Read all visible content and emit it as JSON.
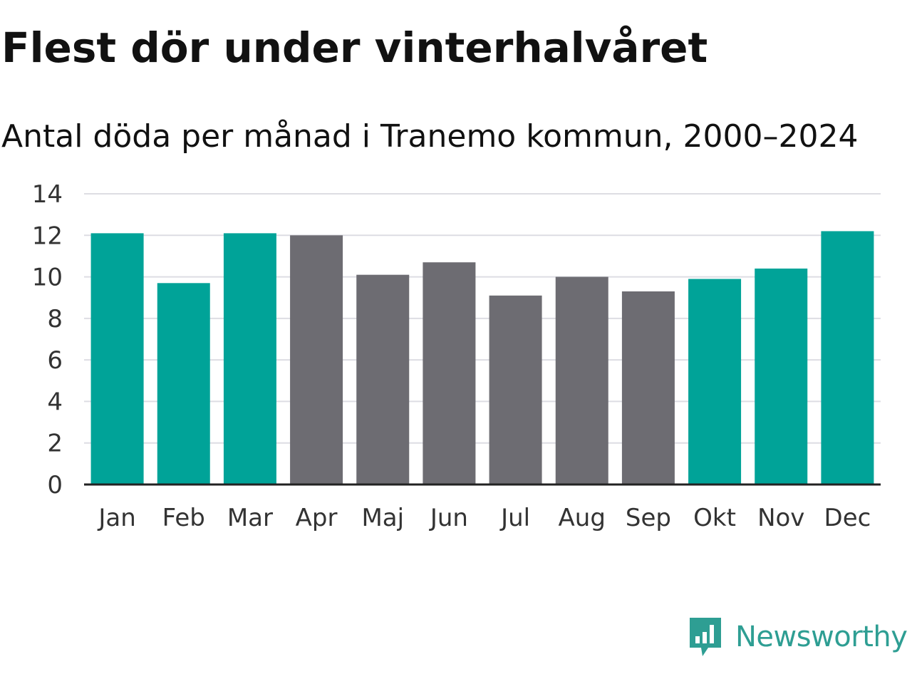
{
  "header": {
    "title": "Flest dör under vinterhalvåret",
    "subtitle": "Antal döda per månad i Tranemo kommun, 2000–2024"
  },
  "brand": {
    "name": "Newsworthy",
    "icon": "newsworthy-logo-icon",
    "color": "#2e9e93"
  },
  "colors": {
    "highlight": "#00a398",
    "base": "#6d6c72",
    "grid": "#dddde3",
    "axis": "#222222"
  },
  "chart_data": {
    "type": "bar",
    "title": "Flest dör under vinterhalvåret",
    "subtitle": "Antal döda per månad i Tranemo kommun, 2000–2024",
    "xlabel": "",
    "ylabel": "",
    "categories": [
      "Jan",
      "Feb",
      "Mar",
      "Apr",
      "Maj",
      "Jun",
      "Jul",
      "Aug",
      "Sep",
      "Okt",
      "Nov",
      "Dec"
    ],
    "values": [
      12.1,
      9.7,
      12.1,
      12.0,
      10.1,
      10.7,
      9.1,
      10.0,
      9.3,
      9.9,
      10.4,
      12.2
    ],
    "highlighted": [
      true,
      true,
      true,
      false,
      false,
      false,
      false,
      false,
      false,
      true,
      true,
      true
    ],
    "ylim": [
      0,
      14
    ],
    "yticks": [
      0,
      2,
      4,
      6,
      8,
      10,
      12,
      14
    ],
    "grid": true
  }
}
